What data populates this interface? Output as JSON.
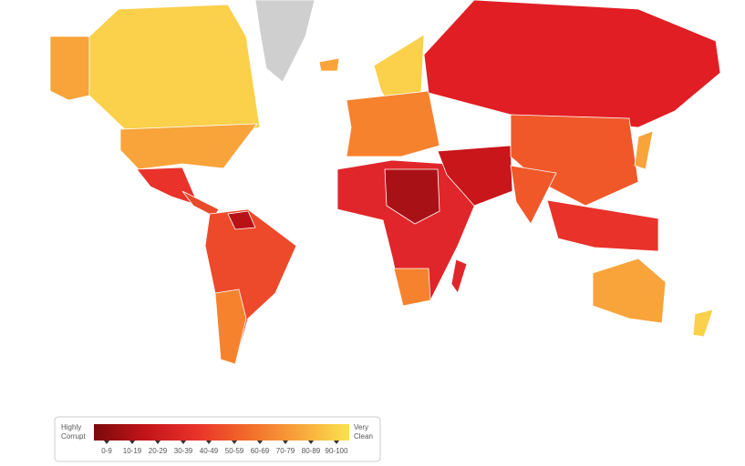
{
  "legend": {
    "low_label": [
      "Highly",
      "Corrupt"
    ],
    "high_label": [
      "Very",
      "Clean"
    ],
    "ranges": [
      "0-9",
      "10-19",
      "20-29",
      "30-39",
      "40-49",
      "50-59",
      "60-69",
      "70-79",
      "80-89",
      "90-100"
    ]
  }
}
